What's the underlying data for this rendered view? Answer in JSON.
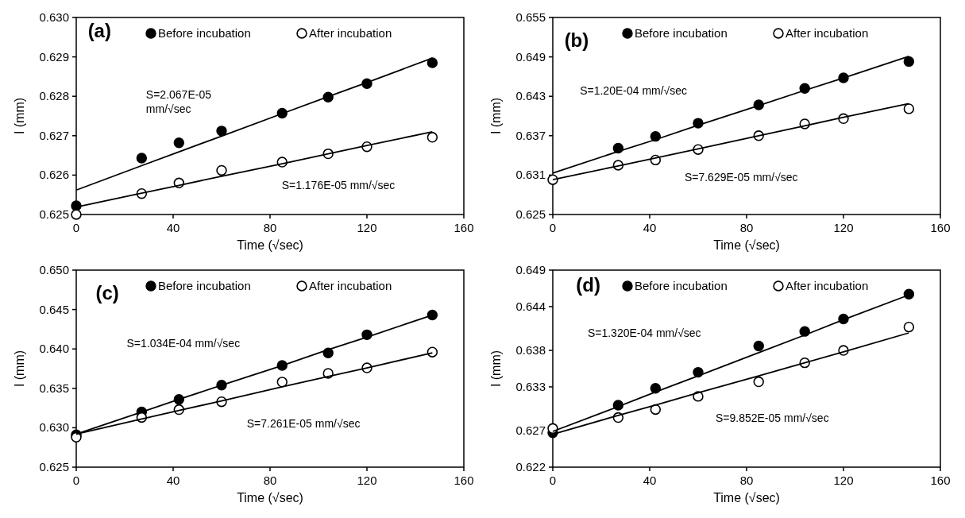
{
  "chart_data": [
    {
      "type": "scatter",
      "xlabel": "Time (√sec)",
      "ylabel": "I (mm)",
      "xlim": [
        0,
        160
      ],
      "xticks": [
        0,
        40,
        80,
        120,
        160
      ],
      "ylim": [
        0.625,
        0.63
      ],
      "yticks": [
        0.625,
        0.626,
        0.627,
        0.628,
        0.629,
        {
          "value": 0.63,
          "label": "0.630"
        }
      ],
      "grid": false,
      "legend": "top",
      "marker": "circle",
      "x": [
        0,
        27,
        42.4,
        60,
        85,
        104,
        120,
        147
      ],
      "series": [
        {
          "name": "Before incubation",
          "color": "#000000",
          "values": [
            0.62522,
            0.62643,
            0.62682,
            0.62712,
            0.62757,
            0.62798,
            0.62832,
            0.62885
          ]
        },
        {
          "name": "After incubation",
          "color": "#ffffff",
          "values": [
            0.625,
            0.62553,
            0.6258,
            0.62612,
            0.62633,
            0.62654,
            0.62672,
            0.62696
          ]
        },
        {
          "type": "line",
          "marker": "none",
          "color": "#000000",
          "values": [
            0.62562,
            0.62624,
            0.62659,
            0.62699,
            0.62756,
            0.62799,
            0.62835,
            0.62897
          ]
        },
        {
          "type": "line",
          "marker": "none",
          "color": "#000000",
          "values": [
            0.62519,
            0.62554,
            0.62574,
            0.62597,
            0.62629,
            0.62654,
            0.62675,
            0.6271
          ]
        }
      ],
      "annotations": [
        "(a)",
        "S=2.067E-05 mm/√sec",
        "S=1.176E-05 mm/√sec"
      ]
    },
    {
      "type": "scatter",
      "xlabel": "Time (√sec)",
      "ylabel": "I (mm)",
      "xlim": [
        0,
        160
      ],
      "xticks": [
        0,
        40,
        80,
        120,
        160
      ],
      "ylim": [
        0.625,
        0.655
      ],
      "yticks": [
        0.625,
        0.631,
        0.637,
        0.643,
        0.649,
        0.655
      ],
      "grid": false,
      "legend": "top",
      "marker": "circle",
      "x": [
        0,
        27,
        42.4,
        60,
        85,
        104,
        120,
        147
      ],
      "series": [
        {
          "name": "Before incubation",
          "color": "#000000",
          "values": [
            null,
            0.6351,
            0.6369,
            0.6389,
            0.6417,
            0.6442,
            0.6458,
            0.6483
          ]
        },
        {
          "name": "After incubation",
          "color": "#ffffff",
          "values": [
            0.6303,
            0.6325,
            0.6333,
            0.6349,
            0.637,
            0.6388,
            0.6396,
            0.6411
          ]
        },
        {
          "type": "line",
          "marker": "none",
          "color": "#000000",
          "values": [
            0.6313,
            0.6346,
            0.6364,
            0.6386,
            0.6416,
            0.6439,
            0.6458,
            0.6491
          ]
        },
        {
          "type": "line",
          "marker": "none",
          "color": "#000000",
          "values": [
            0.6303,
            0.6324,
            0.6336,
            0.635,
            0.637,
            0.6385,
            0.6398,
            0.6419
          ]
        }
      ],
      "annotations": [
        "(b)",
        "S=1.20E-04 mm/√sec",
        "S=7.629E-05 mm/√sec"
      ]
    },
    {
      "type": "scatter",
      "xlabel": "Time (√sec)",
      "ylabel": "I (mm)",
      "xlim": [
        0,
        160
      ],
      "xticks": [
        0,
        40,
        80,
        120,
        160
      ],
      "ylim": [
        0.625,
        0.65
      ],
      "yticks": [
        0.625,
        {
          "value": 0.63,
          "label": "0.630"
        },
        0.635,
        {
          "value": 0.64,
          "label": "0.640"
        },
        0.645,
        {
          "value": 0.65,
          "label": "0.650"
        }
      ],
      "grid": false,
      "legend": "top",
      "marker": "circle",
      "x": [
        0,
        27,
        42.4,
        60,
        85,
        104,
        120,
        147
      ],
      "series": [
        {
          "name": "Before incubation",
          "color": "#000000",
          "values": [
            0.6291,
            0.632,
            0.6336,
            0.6354,
            0.6379,
            0.6395,
            0.6418,
            0.6443
          ]
        },
        {
          "name": "After incubation",
          "color": "#ffffff",
          "values": [
            0.6288,
            0.6313,
            0.6323,
            0.6333,
            0.6358,
            0.6369,
            0.6376,
            0.6396
          ]
        },
        {
          "type": "line",
          "marker": "none",
          "color": "#000000",
          "values": [
            0.6292,
            0.632,
            0.6336,
            0.6354,
            0.6379,
            0.6399,
            0.6415,
            0.6443
          ]
        },
        {
          "type": "line",
          "marker": "none",
          "color": "#000000",
          "values": [
            0.6292,
            0.6311,
            0.6322,
            0.6334,
            0.6352,
            0.6365,
            0.6376,
            0.6395
          ]
        }
      ],
      "annotations": [
        "(c)",
        "S=1.034E-04 mm/√sec",
        "S=7.261E-05 mm/√sec"
      ]
    },
    {
      "type": "scatter",
      "xlabel": "Time (√sec)",
      "ylabel": "I (mm)",
      "xlim": [
        0,
        160
      ],
      "xticks": [
        0,
        40,
        80,
        120,
        160
      ],
      "ylim": [
        0.622,
        0.649
      ],
      "yticks": [
        0.622,
        0.627,
        0.633,
        0.638,
        0.644,
        0.649
      ],
      "grid": false,
      "legend": "top",
      "marker": "circle",
      "x": [
        0,
        27,
        42.4,
        60,
        85,
        104,
        120,
        147
      ],
      "series": [
        {
          "name": "Before incubation",
          "color": "#000000",
          "values": [
            0.6267,
            0.6305,
            0.6328,
            0.635,
            0.6386,
            0.6406,
            0.6423,
            0.6457
          ]
        },
        {
          "name": "After incubation",
          "color": "#ffffff",
          "values": [
            0.6273,
            0.6288,
            0.6299,
            0.6317,
            0.6337,
            0.6363,
            0.638,
            0.6412
          ]
        },
        {
          "type": "line",
          "marker": "none",
          "color": "#000000",
          "values": [
            0.6269,
            0.6303,
            0.6323,
            0.6345,
            0.6377,
            0.6401,
            0.6422,
            0.6456
          ]
        },
        {
          "type": "line",
          "marker": "none",
          "color": "#000000",
          "values": [
            0.6265,
            0.6291,
            0.6305,
            0.6322,
            0.6345,
            0.6363,
            0.6378,
            0.6404
          ]
        }
      ],
      "annotations": [
        "(d)",
        "S=1.320E-04 mm/√sec",
        "S=9.852E-05 mm/√sec"
      ]
    }
  ]
}
